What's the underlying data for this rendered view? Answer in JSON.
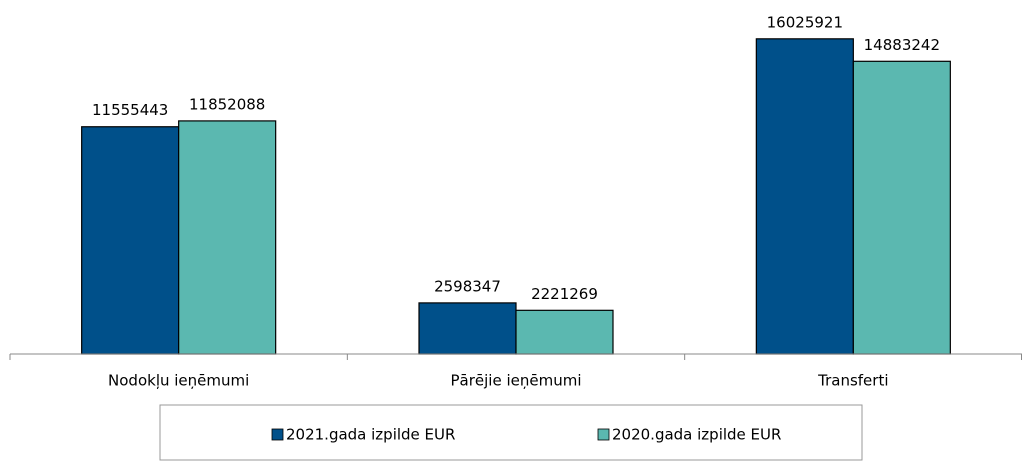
{
  "chart_data": {
    "type": "bar",
    "categories": [
      "Nodokļu ieņēmumi",
      "Pārējie ieņēmumi",
      "Transferti"
    ],
    "series": [
      {
        "name": "2021.gada izpilde EUR",
        "color": "#00508a",
        "values": [
          11555443,
          2598347,
          16025921
        ]
      },
      {
        "name": "2020.gada izpilde EUR",
        "color": "#5bb8b0",
        "values": [
          11852088,
          2221269,
          14883242
        ]
      }
    ],
    "ylim": [
      0,
      18000000
    ],
    "legend": "bottom"
  }
}
